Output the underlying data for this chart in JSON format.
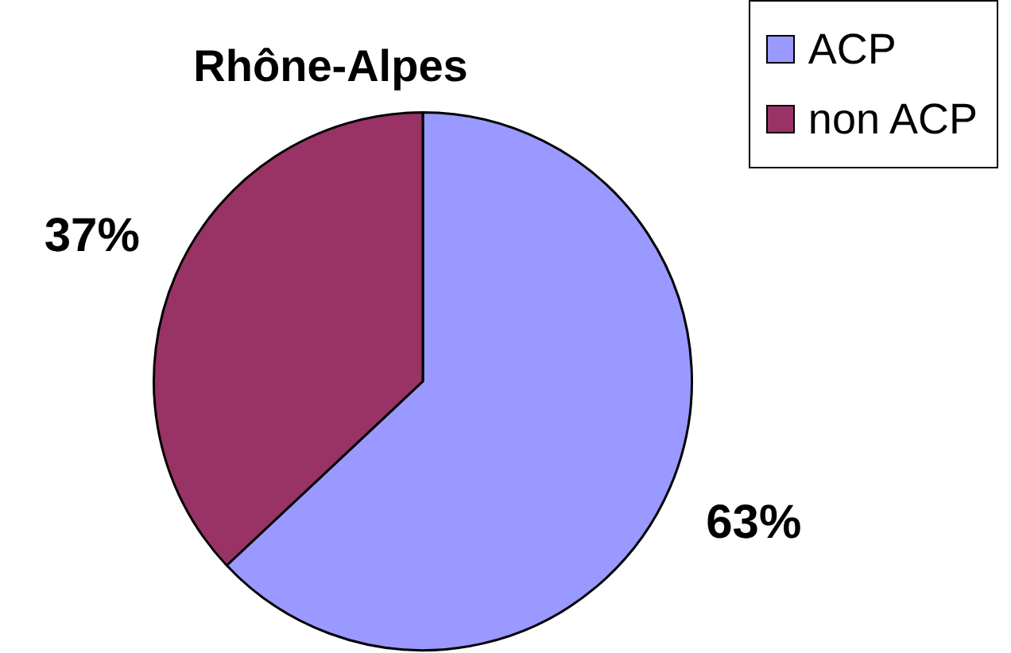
{
  "chart_data": {
    "type": "pie",
    "title": "Rhône-Alpes",
    "categories": [
      "ACP",
      "non ACP"
    ],
    "values": [
      63,
      37
    ],
    "colors": [
      "#9999ff",
      "#993366"
    ],
    "legend": "top right",
    "value_labels": [
      "63%",
      "37%"
    ]
  }
}
